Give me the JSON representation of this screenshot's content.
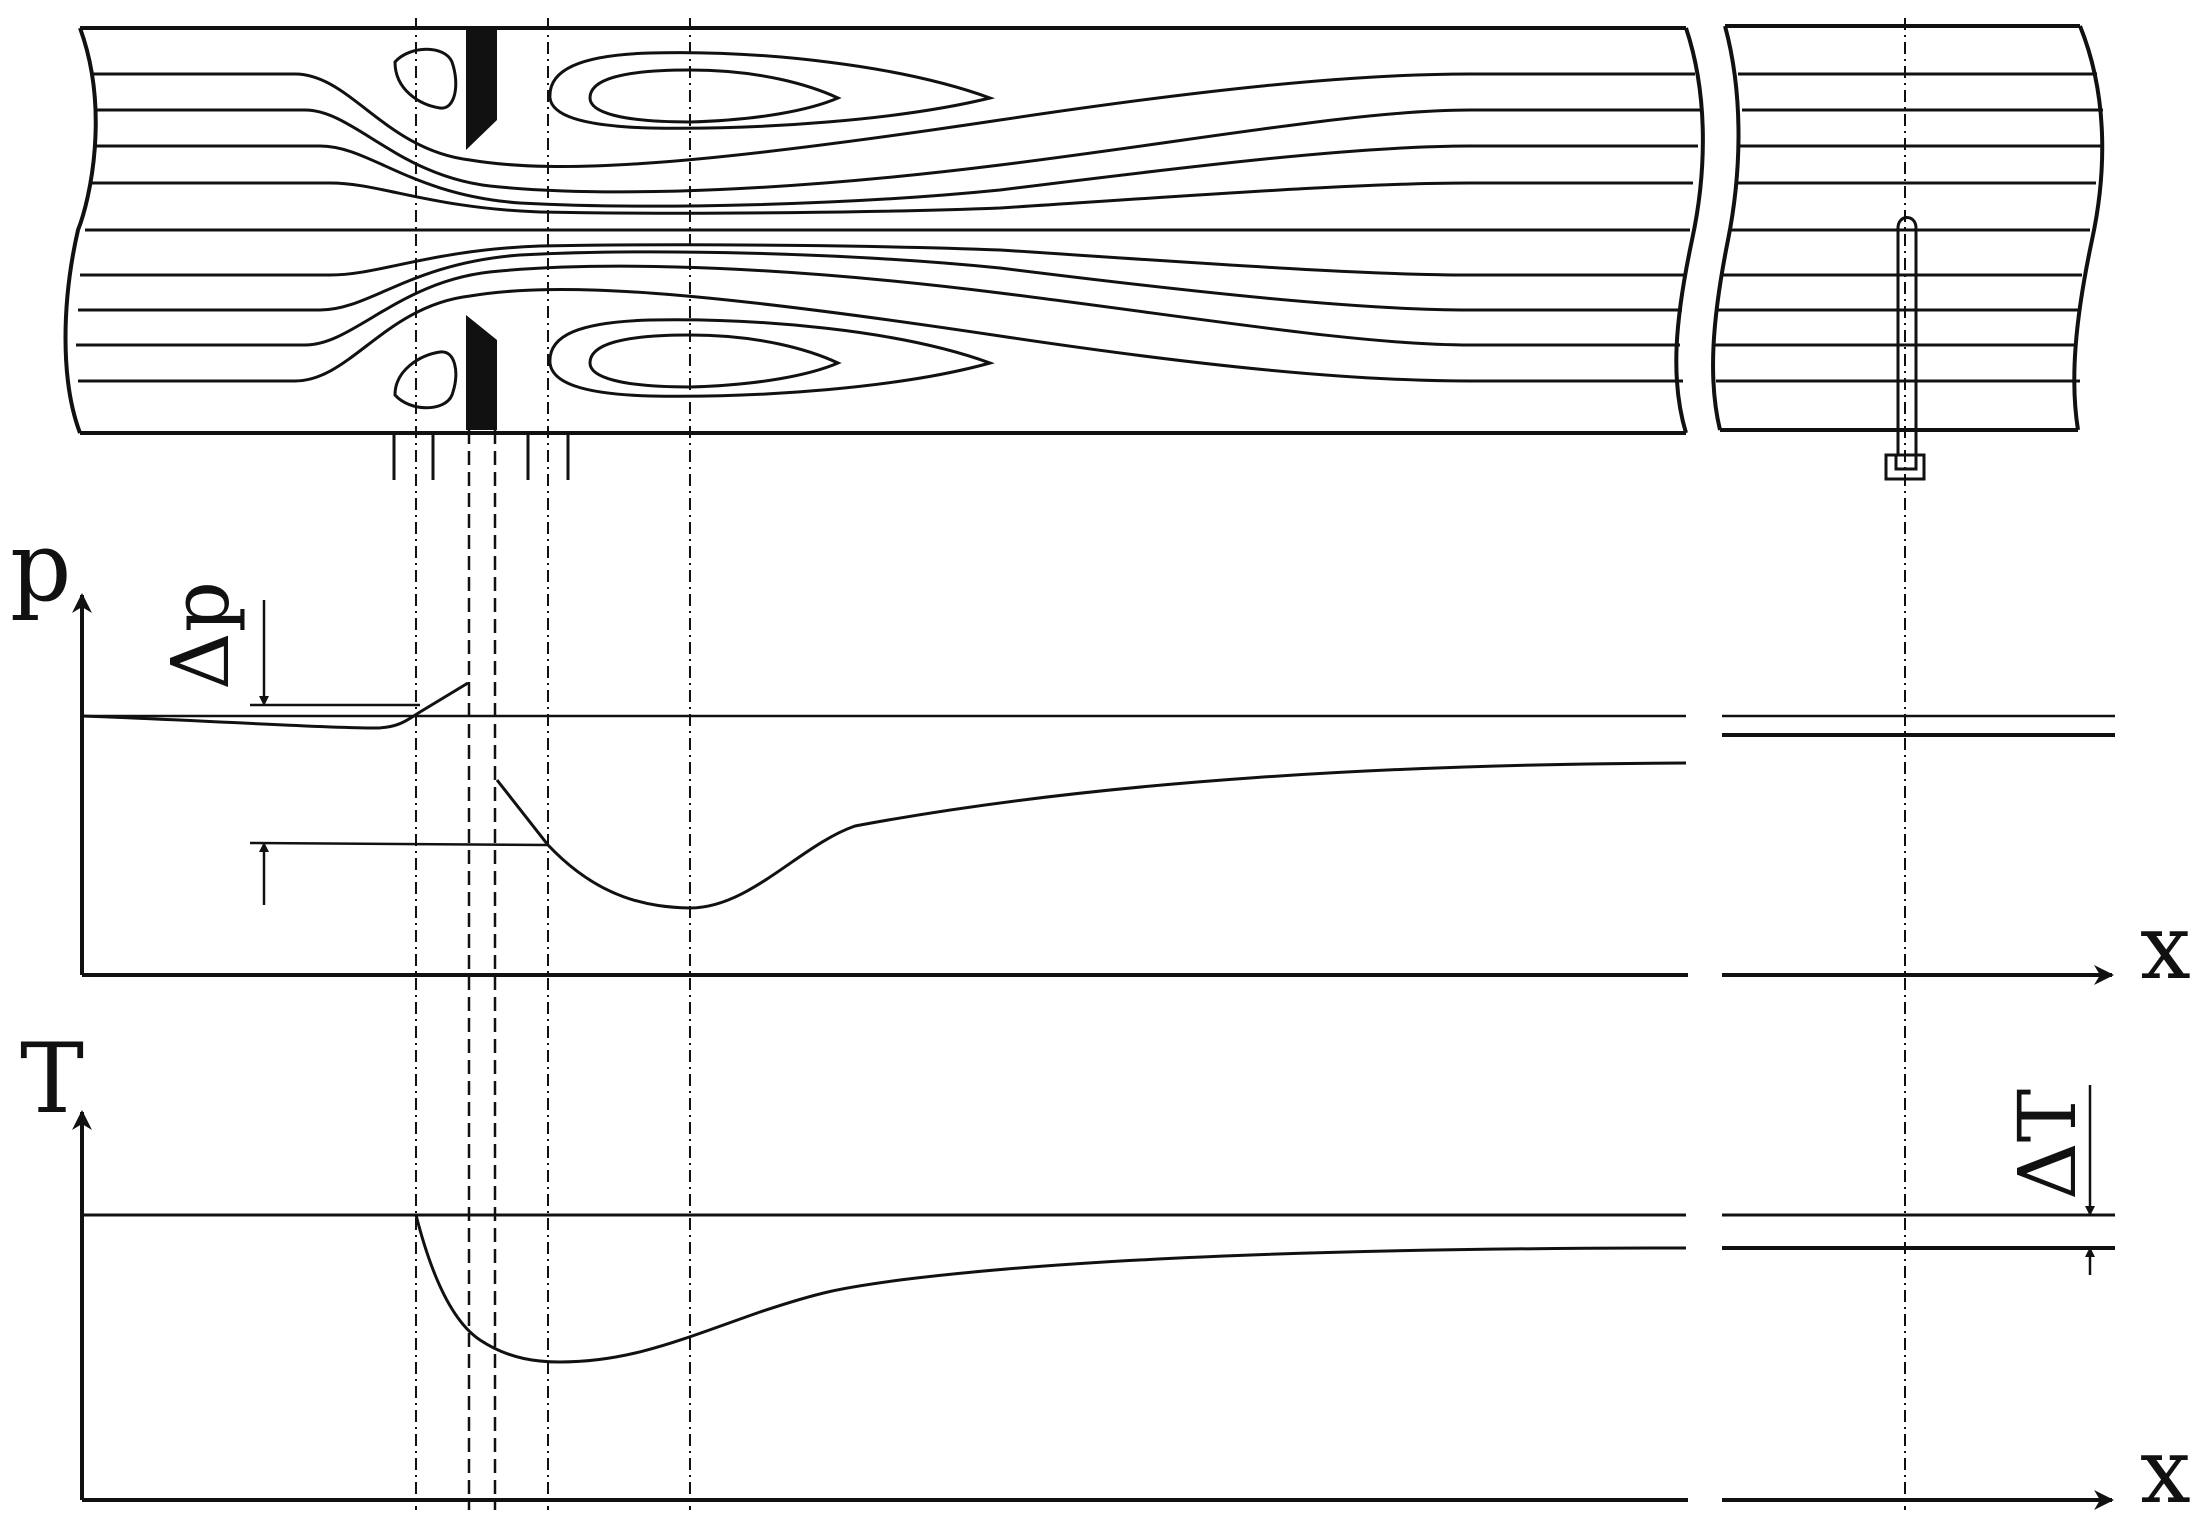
{
  "labels": {
    "pressure_axis": "p",
    "pressure_drop": "Δp",
    "temperature_axis": "T",
    "temperature_drop": "ΔT",
    "x_axis_top": "x",
    "x_axis_bottom": "x"
  },
  "colors": {
    "line": "#111111",
    "background": "#ffffff"
  }
}
